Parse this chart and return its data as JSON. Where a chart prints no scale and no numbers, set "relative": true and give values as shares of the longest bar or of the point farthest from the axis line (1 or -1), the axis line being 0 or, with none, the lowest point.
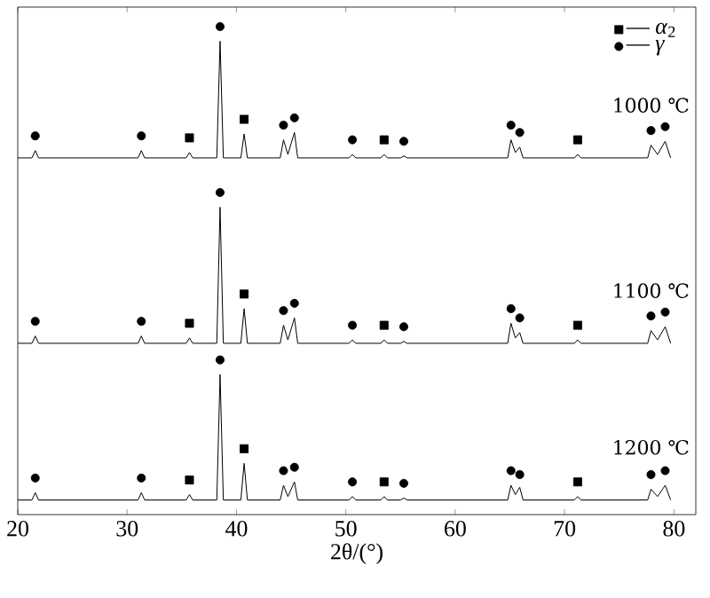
{
  "chart_data": {
    "type": "line",
    "relative": true,
    "xlabel": "2θ/(°)",
    "xlim": [
      20,
      82
    ],
    "xticks": [
      20,
      30,
      40,
      50,
      60,
      70,
      80
    ],
    "legend": "top right",
    "annotations": [
      "1000 ℃",
      "1100 ℃",
      "1200 ℃"
    ],
    "series": [
      {
        "color": "#000000",
        "x": [
          20,
          21.3,
          21.6,
          21.9,
          31.0,
          31.3,
          31.6,
          35.4,
          35.7,
          36.0,
          38.2,
          38.5,
          38.8,
          40.4,
          40.7,
          41.0,
          44.0,
          44.3,
          44.7,
          45.3,
          45.6,
          50.3,
          50.6,
          50.9,
          53.2,
          53.5,
          53.8,
          55.0,
          55.3,
          55.6,
          64.8,
          65.1,
          65.5,
          65.9,
          66.2,
          70.9,
          71.2,
          71.5,
          77.6,
          77.9,
          78.5,
          79.2,
          79.7
        ],
        "values": [
          0.731,
          0.731,
          0.746,
          0.731,
          0.731,
          0.746,
          0.731,
          0.731,
          0.742,
          0.731,
          0.731,
          0.97,
          0.731,
          0.731,
          0.78,
          0.731,
          0.731,
          0.768,
          0.738,
          0.783,
          0.731,
          0.731,
          0.738,
          0.731,
          0.731,
          0.738,
          0.731,
          0.731,
          0.735,
          0.731,
          0.731,
          0.768,
          0.742,
          0.753,
          0.731,
          0.731,
          0.738,
          0.731,
          0.731,
          0.757,
          0.738,
          0.765,
          0.731
        ]
      },
      {
        "color": "#000000",
        "x": [
          20,
          21.3,
          21.6,
          21.9,
          31.0,
          31.3,
          31.6,
          35.4,
          35.7,
          36.0,
          38.2,
          38.5,
          38.8,
          40.4,
          40.7,
          41.0,
          44.0,
          44.3,
          44.7,
          45.3,
          45.6,
          50.3,
          50.6,
          50.9,
          53.2,
          53.5,
          53.8,
          55.0,
          55.3,
          55.6,
          64.8,
          65.1,
          65.5,
          65.9,
          66.2,
          70.9,
          71.2,
          71.5,
          77.6,
          77.9,
          78.5,
          79.2,
          79.7
        ],
        "values": [
          0.351,
          0.351,
          0.366,
          0.351,
          0.351,
          0.366,
          0.351,
          0.351,
          0.362,
          0.351,
          0.351,
          0.63,
          0.351,
          0.351,
          0.422,
          0.351,
          0.351,
          0.388,
          0.358,
          0.403,
          0.351,
          0.351,
          0.358,
          0.351,
          0.351,
          0.358,
          0.351,
          0.351,
          0.355,
          0.351,
          0.351,
          0.392,
          0.362,
          0.373,
          0.351,
          0.351,
          0.358,
          0.351,
          0.351,
          0.377,
          0.358,
          0.385,
          0.351
        ]
      },
      {
        "color": "#000000",
        "x": [
          20,
          21.3,
          21.6,
          21.9,
          31.0,
          31.3,
          31.6,
          35.4,
          35.7,
          36.0,
          38.2,
          38.5,
          38.8,
          40.4,
          40.7,
          41.0,
          44.0,
          44.3,
          44.7,
          45.3,
          45.6,
          50.3,
          50.6,
          50.9,
          53.2,
          53.5,
          53.8,
          55.0,
          55.3,
          55.6,
          64.8,
          65.1,
          65.5,
          65.9,
          66.2,
          70.9,
          71.2,
          71.5,
          77.6,
          77.9,
          78.5,
          79.2,
          79.7
        ],
        "values": [
          0.03,
          0.03,
          0.045,
          0.03,
          0.03,
          0.045,
          0.03,
          0.03,
          0.041,
          0.03,
          0.03,
          0.287,
          0.03,
          0.03,
          0.105,
          0.03,
          0.03,
          0.06,
          0.037,
          0.067,
          0.03,
          0.03,
          0.037,
          0.03,
          0.03,
          0.037,
          0.03,
          0.03,
          0.034,
          0.03,
          0.03,
          0.06,
          0.041,
          0.056,
          0.03,
          0.03,
          0.037,
          0.03,
          0.03,
          0.052,
          0.037,
          0.06,
          0.03
        ]
      },
      {
        "type": "scatter",
        "name": "— *α*$_{2}$",
        "marker": "square",
        "color": "#000000",
        "x": [
          35.7,
          40.7,
          53.5,
          71.2,
          35.7,
          40.7,
          53.5,
          71.2,
          35.7,
          40.7,
          53.5,
          71.2
        ],
        "values": [
          0.772,
          0.81,
          0.768,
          0.768,
          0.392,
          0.452,
          0.388,
          0.388,
          0.071,
          0.135,
          0.067,
          0.067
        ]
      },
      {
        "type": "scatter",
        "name": "— *γ*",
        "marker": "circle",
        "color": "#000000",
        "x": [
          21.6,
          31.3,
          38.5,
          44.3,
          45.3,
          50.6,
          55.3,
          65.1,
          65.9,
          77.9,
          79.2,
          21.6,
          31.3,
          38.5,
          44.3,
          45.3,
          50.6,
          55.3,
          65.1,
          65.9,
          77.9,
          79.2,
          21.6,
          31.3,
          38.5,
          44.3,
          45.3,
          50.6,
          55.3,
          65.1,
          65.9,
          77.9,
          79.2
        ],
        "values": [
          0.776,
          0.776,
          1.0,
          0.798,
          0.813,
          0.768,
          0.765,
          0.798,
          0.783,
          0.787,
          0.795,
          0.396,
          0.396,
          0.66,
          0.418,
          0.433,
          0.388,
          0.385,
          0.422,
          0.403,
          0.407,
          0.415,
          0.075,
          0.075,
          0.317,
          0.09,
          0.097,
          0.067,
          0.064,
          0.09,
          0.082,
          0.082,
          0.09
        ]
      }
    ]
  }
}
